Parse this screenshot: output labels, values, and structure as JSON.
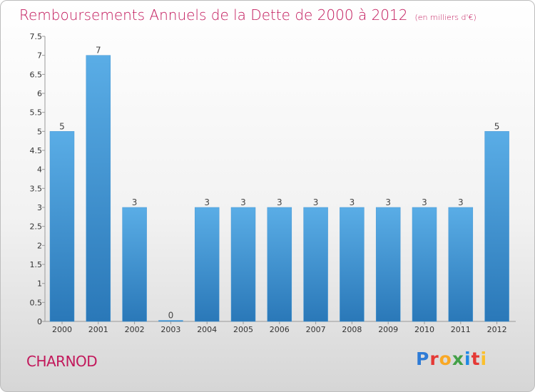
{
  "title": "Remboursements Annuels de la Dette de 2000 à 2012",
  "unit": "(en milliers d'€)",
  "place": "CHARNOD",
  "logo": {
    "letters": [
      "P",
      "r",
      "o",
      "x",
      "i",
      "t",
      "i"
    ],
    "colors": [
      "#2e7bd6",
      "#e53935",
      "#f9a825",
      "#43a047",
      "#1e88e5",
      "#e53935",
      "#fbc02d"
    ]
  },
  "chart_data": {
    "type": "bar",
    "categories": [
      "2000",
      "2001",
      "2002",
      "2003",
      "2004",
      "2005",
      "2006",
      "2007",
      "2008",
      "2009",
      "2010",
      "2011",
      "2012"
    ],
    "values": [
      5,
      7,
      3,
      0,
      3,
      3,
      3,
      3,
      3,
      3,
      3,
      3,
      5
    ],
    "data_labels": [
      "5",
      "7",
      "3",
      "0",
      "3",
      "3",
      "3",
      "3",
      "3",
      "3",
      "3",
      "3",
      "5"
    ],
    "yticks": [
      "0",
      "0.5",
      "1",
      "1.5",
      "2",
      "2.5",
      "3",
      "3.5",
      "4",
      "4.5",
      "5",
      "5.5",
      "6",
      "6.5",
      "7",
      "7.5"
    ],
    "ylim": [
      0,
      7.5
    ],
    "grid": false,
    "bar_color_top": "#5aade6",
    "bar_color_bottom": "#2a78b8"
  }
}
